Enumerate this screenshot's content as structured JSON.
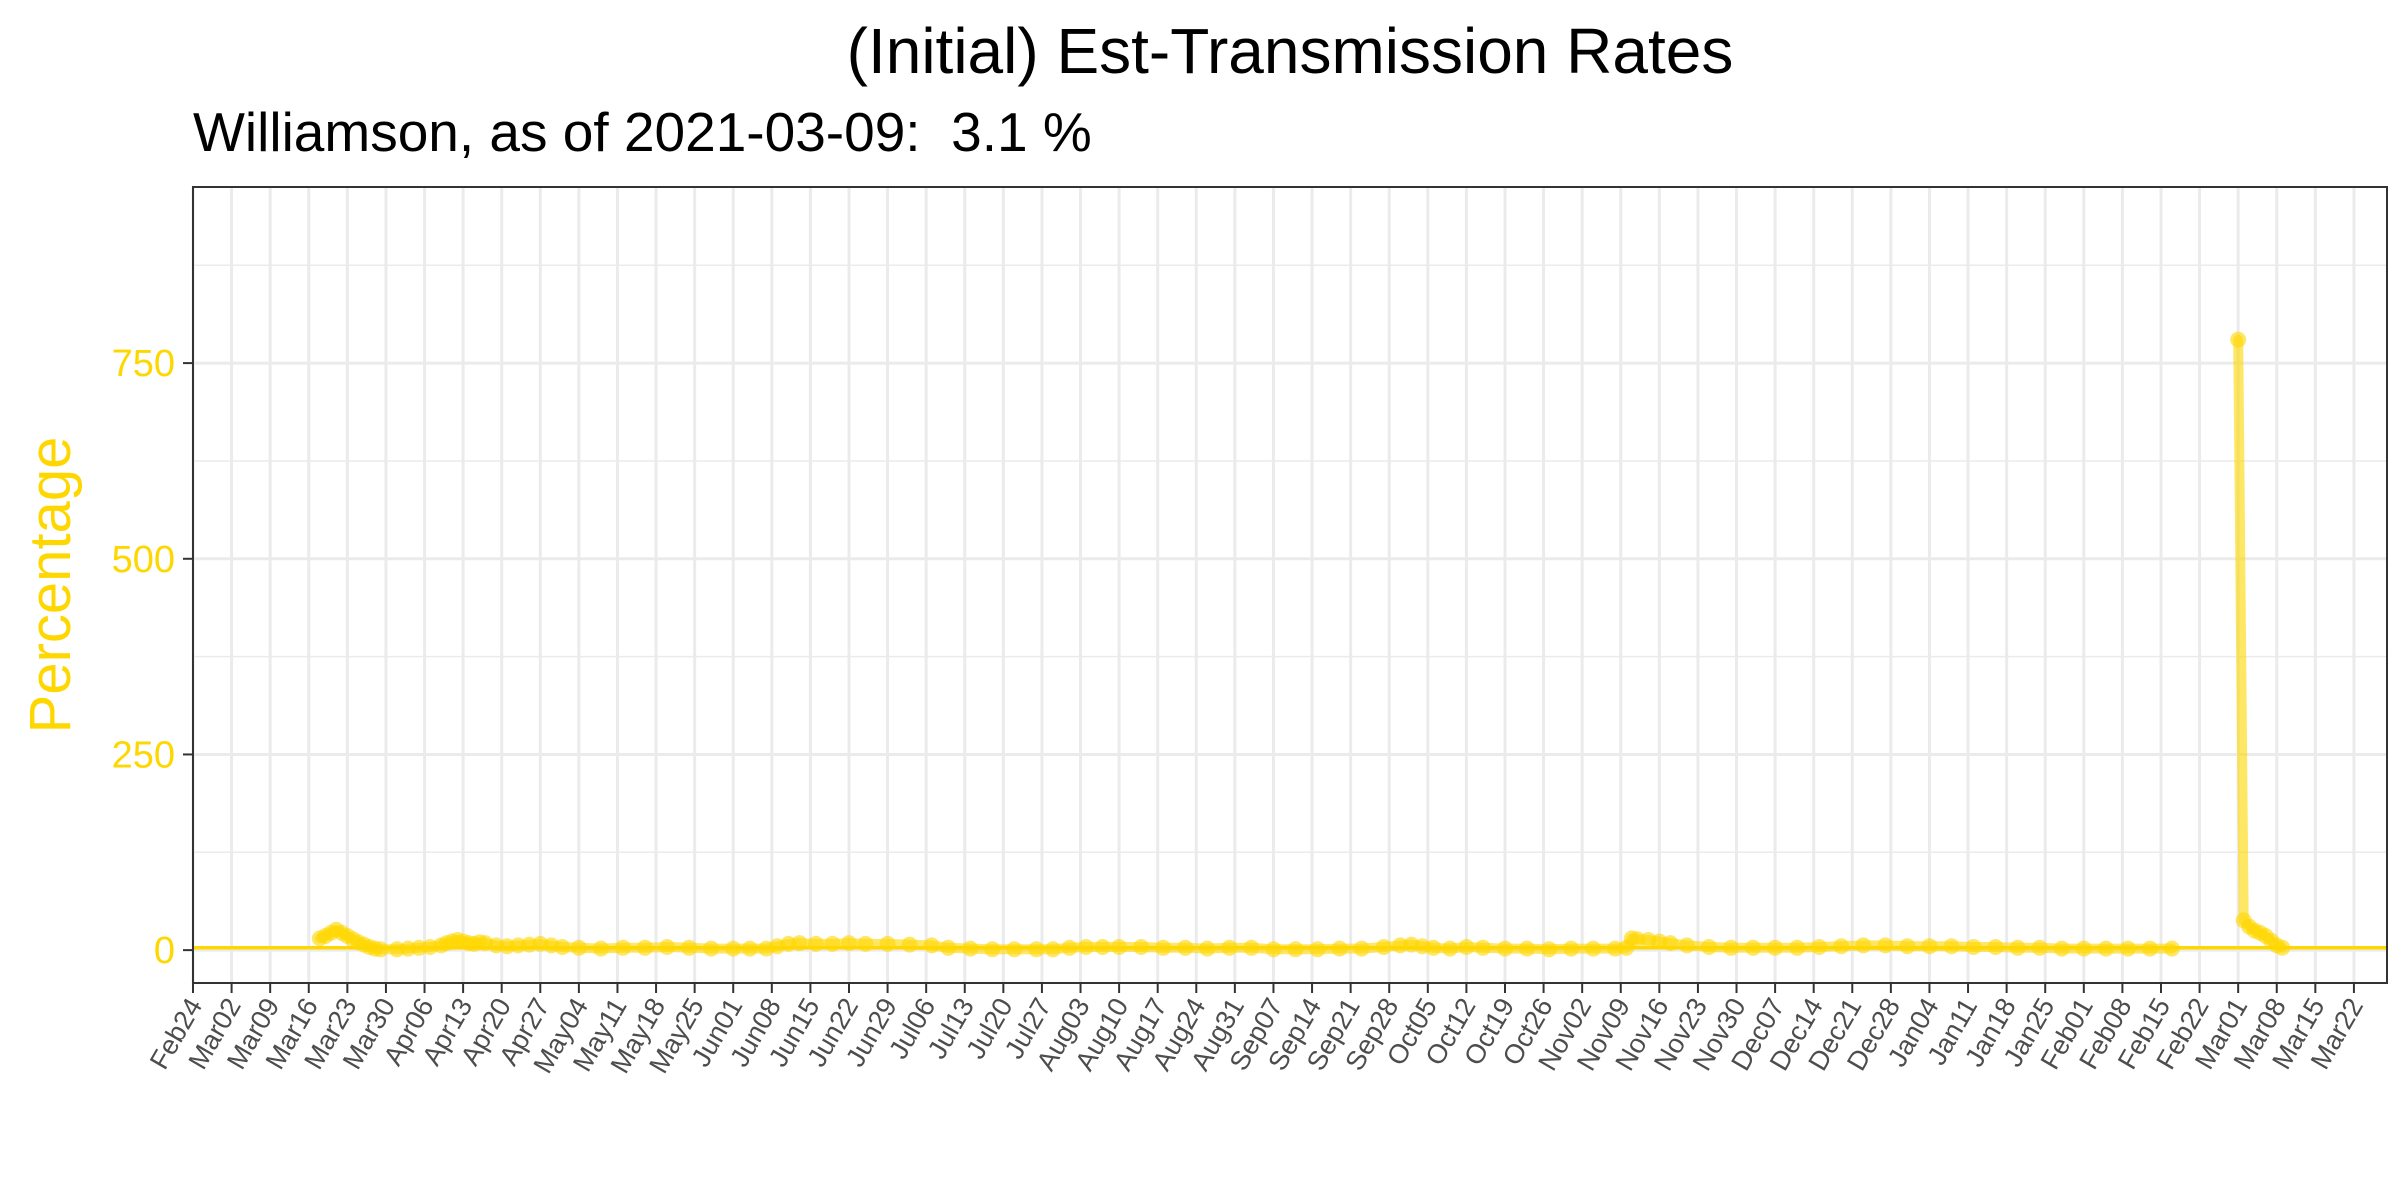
{
  "title": "(Initial) Est-Transmission Rates",
  "subtitle": "Williamson, as of 2021-03-09:  3.1 %",
  "colors": {
    "accent": "#FFD700",
    "grid": "#EBEBEB",
    "panel_border": "#333333",
    "tick_text": "#4D4D4D"
  },
  "chart_data": {
    "type": "line",
    "title": "(Initial) Est-Transmission Rates",
    "subtitle": "Williamson, as of 2021-03-09:  3.1 %",
    "xlabel": "",
    "ylabel": "Percentage",
    "xlim": [
      "2020-02-24",
      "2021-03-28"
    ],
    "ylim": [
      -42,
      975
    ],
    "yticks": [
      0,
      250,
      500,
      750
    ],
    "xticks": [
      {
        "date": "2020-02-24",
        "label": "Feb24"
      },
      {
        "date": "2020-03-02",
        "label": "Mar02"
      },
      {
        "date": "2020-03-09",
        "label": "Mar09"
      },
      {
        "date": "2020-03-16",
        "label": "Mar16"
      },
      {
        "date": "2020-03-23",
        "label": "Mar23"
      },
      {
        "date": "2020-03-30",
        "label": "Mar30"
      },
      {
        "date": "2020-04-06",
        "label": "Apr06"
      },
      {
        "date": "2020-04-13",
        "label": "Apr13"
      },
      {
        "date": "2020-04-20",
        "label": "Apr20"
      },
      {
        "date": "2020-04-27",
        "label": "Apr27"
      },
      {
        "date": "2020-05-04",
        "label": "May04"
      },
      {
        "date": "2020-05-11",
        "label": "May11"
      },
      {
        "date": "2020-05-18",
        "label": "May18"
      },
      {
        "date": "2020-05-25",
        "label": "May25"
      },
      {
        "date": "2020-06-01",
        "label": "Jun01"
      },
      {
        "date": "2020-06-08",
        "label": "Jun08"
      },
      {
        "date": "2020-06-15",
        "label": "Jun15"
      },
      {
        "date": "2020-06-22",
        "label": "Jun22"
      },
      {
        "date": "2020-06-29",
        "label": "Jun29"
      },
      {
        "date": "2020-07-06",
        "label": "Jul06"
      },
      {
        "date": "2020-07-13",
        "label": "Jul13"
      },
      {
        "date": "2020-07-20",
        "label": "Jul20"
      },
      {
        "date": "2020-07-27",
        "label": "Jul27"
      },
      {
        "date": "2020-08-03",
        "label": "Aug03"
      },
      {
        "date": "2020-08-10",
        "label": "Aug10"
      },
      {
        "date": "2020-08-17",
        "label": "Aug17"
      },
      {
        "date": "2020-08-24",
        "label": "Aug24"
      },
      {
        "date": "2020-08-31",
        "label": "Aug31"
      },
      {
        "date": "2020-09-07",
        "label": "Sep07"
      },
      {
        "date": "2020-09-14",
        "label": "Sep14"
      },
      {
        "date": "2020-09-21",
        "label": "Sep21"
      },
      {
        "date": "2020-09-28",
        "label": "Sep28"
      },
      {
        "date": "2020-10-05",
        "label": "Oct05"
      },
      {
        "date": "2020-10-12",
        "label": "Oct12"
      },
      {
        "date": "2020-10-19",
        "label": "Oct19"
      },
      {
        "date": "2020-10-26",
        "label": "Oct26"
      },
      {
        "date": "2020-11-02",
        "label": "Nov02"
      },
      {
        "date": "2020-11-09",
        "label": "Nov09"
      },
      {
        "date": "2020-11-16",
        "label": "Nov16"
      },
      {
        "date": "2020-11-23",
        "label": "Nov23"
      },
      {
        "date": "2020-11-30",
        "label": "Nov30"
      },
      {
        "date": "2020-12-07",
        "label": "Dec07"
      },
      {
        "date": "2020-12-14",
        "label": "Dec14"
      },
      {
        "date": "2020-12-21",
        "label": "Dec21"
      },
      {
        "date": "2020-12-28",
        "label": "Dec28"
      },
      {
        "date": "2021-01-04",
        "label": "Jan04"
      },
      {
        "date": "2021-01-11",
        "label": "Jan11"
      },
      {
        "date": "2021-01-18",
        "label": "Jan18"
      },
      {
        "date": "2021-01-25",
        "label": "Jan25"
      },
      {
        "date": "2021-02-01",
        "label": "Feb01"
      },
      {
        "date": "2021-02-08",
        "label": "Feb08"
      },
      {
        "date": "2021-02-15",
        "label": "Feb15"
      },
      {
        "date": "2021-02-22",
        "label": "Feb22"
      },
      {
        "date": "2021-03-01",
        "label": "Mar01"
      },
      {
        "date": "2021-03-08",
        "label": "Mar08"
      },
      {
        "date": "2021-03-15",
        "label": "Mar15"
      },
      {
        "date": "2021-03-22",
        "label": "Mar22"
      }
    ],
    "grid": true,
    "legend": "none",
    "reference_line": {
      "y": 3.1
    },
    "series": [
      {
        "points": [
          [
            "2020-03-18",
            15
          ],
          [
            "2020-03-19",
            18
          ],
          [
            "2020-03-20",
            22
          ],
          [
            "2020-03-21",
            26
          ],
          [
            "2020-03-22",
            22
          ],
          [
            "2020-03-23",
            18
          ],
          [
            "2020-03-24",
            14
          ],
          [
            "2020-03-25",
            10
          ],
          [
            "2020-03-26",
            7
          ],
          [
            "2020-03-27",
            4
          ],
          [
            "2020-03-28",
            2
          ],
          [
            "2020-03-29",
            1
          ],
          [
            "2020-04-01",
            1
          ],
          [
            "2020-04-03",
            2
          ],
          [
            "2020-04-05",
            3
          ],
          [
            "2020-04-07",
            4
          ],
          [
            "2020-04-09",
            6
          ],
          [
            "2020-04-10",
            9
          ],
          [
            "2020-04-11",
            11
          ],
          [
            "2020-04-12",
            13
          ],
          [
            "2020-04-13",
            11
          ],
          [
            "2020-04-14",
            9
          ],
          [
            "2020-04-15",
            8
          ],
          [
            "2020-04-16",
            10
          ],
          [
            "2020-04-17",
            9
          ],
          [
            "2020-04-19",
            6
          ],
          [
            "2020-04-21",
            5
          ],
          [
            "2020-04-23",
            6
          ],
          [
            "2020-04-25",
            7
          ],
          [
            "2020-04-27",
            8
          ],
          [
            "2020-04-29",
            6
          ],
          [
            "2020-05-01",
            4
          ],
          [
            "2020-05-04",
            3
          ],
          [
            "2020-05-08",
            2
          ],
          [
            "2020-05-12",
            3
          ],
          [
            "2020-05-16",
            3
          ],
          [
            "2020-05-20",
            4
          ],
          [
            "2020-05-24",
            3
          ],
          [
            "2020-05-28",
            2
          ],
          [
            "2020-06-01",
            2
          ],
          [
            "2020-06-04",
            2
          ],
          [
            "2020-06-07",
            2
          ],
          [
            "2020-06-09",
            5
          ],
          [
            "2020-06-11",
            8
          ],
          [
            "2020-06-13",
            9
          ],
          [
            "2020-06-16",
            8
          ],
          [
            "2020-06-19",
            8
          ],
          [
            "2020-06-22",
            9
          ],
          [
            "2020-06-25",
            8
          ],
          [
            "2020-06-29",
            8
          ],
          [
            "2020-07-03",
            7
          ],
          [
            "2020-07-07",
            6
          ],
          [
            "2020-07-10",
            3
          ],
          [
            "2020-07-14",
            2
          ],
          [
            "2020-07-18",
            1
          ],
          [
            "2020-07-22",
            1
          ],
          [
            "2020-07-26",
            1
          ],
          [
            "2020-07-29",
            1
          ],
          [
            "2020-08-01",
            3
          ],
          [
            "2020-08-04",
            4
          ],
          [
            "2020-08-07",
            4
          ],
          [
            "2020-08-10",
            4
          ],
          [
            "2020-08-14",
            4
          ],
          [
            "2020-08-18",
            3
          ],
          [
            "2020-08-22",
            3
          ],
          [
            "2020-08-26",
            2
          ],
          [
            "2020-08-30",
            3
          ],
          [
            "2020-09-03",
            3
          ],
          [
            "2020-09-07",
            1
          ],
          [
            "2020-09-11",
            1
          ],
          [
            "2020-09-15",
            1
          ],
          [
            "2020-09-19",
            2
          ],
          [
            "2020-09-23",
            2
          ],
          [
            "2020-09-27",
            4
          ],
          [
            "2020-09-30",
            6
          ],
          [
            "2020-10-02",
            7
          ],
          [
            "2020-10-04",
            5
          ],
          [
            "2020-10-06",
            3
          ],
          [
            "2020-10-09",
            2
          ],
          [
            "2020-10-12",
            4
          ],
          [
            "2020-10-15",
            3
          ],
          [
            "2020-10-19",
            2
          ],
          [
            "2020-10-23",
            2
          ],
          [
            "2020-10-27",
            1
          ],
          [
            "2020-10-31",
            2
          ],
          [
            "2020-11-04",
            2
          ],
          [
            "2020-11-08",
            2
          ],
          [
            "2020-11-10",
            3
          ],
          [
            "2020-11-11",
            15
          ],
          [
            "2020-11-12",
            14
          ],
          [
            "2020-11-14",
            13
          ],
          [
            "2020-11-16",
            11
          ],
          [
            "2020-11-18",
            9
          ],
          [
            "2020-11-21",
            6
          ],
          [
            "2020-11-25",
            4
          ],
          [
            "2020-11-29",
            3
          ],
          [
            "2020-12-03",
            3
          ],
          [
            "2020-12-07",
            3
          ],
          [
            "2020-12-11",
            3
          ],
          [
            "2020-12-15",
            4
          ],
          [
            "2020-12-19",
            5
          ],
          [
            "2020-12-23",
            6
          ],
          [
            "2020-12-27",
            6
          ],
          [
            "2020-12-31",
            5
          ],
          [
            "2021-01-04",
            5
          ],
          [
            "2021-01-08",
            5
          ],
          [
            "2021-01-12",
            4
          ],
          [
            "2021-01-16",
            4
          ],
          [
            "2021-01-20",
            3
          ],
          [
            "2021-01-24",
            3
          ],
          [
            "2021-01-28",
            2
          ],
          [
            "2021-02-01",
            2
          ],
          [
            "2021-02-05",
            2
          ],
          [
            "2021-02-09",
            2
          ],
          [
            "2021-02-13",
            2
          ],
          [
            "2021-02-17",
            2
          ]
        ]
      },
      {
        "points": [
          [
            "2021-03-01",
            780
          ],
          [
            "2021-03-02",
            38
          ],
          [
            "2021-03-03",
            30
          ],
          [
            "2021-03-04",
            25
          ],
          [
            "2021-03-05",
            22
          ],
          [
            "2021-03-06",
            18
          ],
          [
            "2021-03-07",
            12
          ],
          [
            "2021-03-08",
            6
          ],
          [
            "2021-03-09",
            3.1
          ]
        ]
      }
    ]
  }
}
